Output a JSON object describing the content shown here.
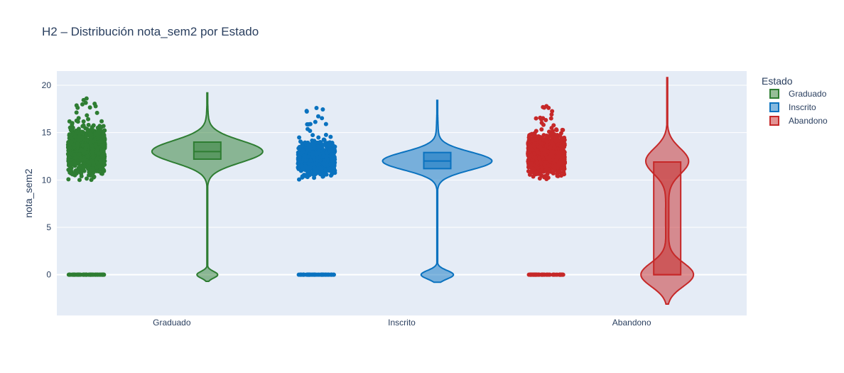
{
  "chart_data": {
    "type": "violin",
    "title": "H2 – Distribución nota_sem2 por Estado",
    "xlabel": "",
    "ylabel": "nota_sem2",
    "ylim": [
      -4.3,
      21.5
    ],
    "yticks": [
      0,
      5,
      10,
      15,
      20
    ],
    "grid": true,
    "plot_background": "#e5ecf6",
    "legend": {
      "title": "Estado",
      "placement": "right"
    },
    "categories": [
      "Graduado",
      "Inscrito",
      "Abandono"
    ],
    "series": [
      {
        "name": "Graduado",
        "color": "#2e7d32",
        "box": {
          "q1": 12.2,
          "median": 13.0,
          "q3": 14.0
        },
        "violin_range": [
          -0.7,
          19.2
        ],
        "points": {
          "main_range": [
            10.0,
            16.2
          ],
          "outlier_max": 18.6,
          "zero_cluster": true
        }
      },
      {
        "name": "Inscrito",
        "color": "#0a72bf",
        "box": {
          "q1": 11.2,
          "median": 12.0,
          "q3": 12.9
        },
        "violin_range": [
          -0.8,
          18.4
        ],
        "points": {
          "main_range": [
            10.0,
            14.6
          ],
          "outlier_max": 17.6,
          "zero_cluster": true
        }
      },
      {
        "name": "Abandono",
        "color": "#c62828",
        "box": {
          "q1": 0,
          "median": 0,
          "q3": 11.9
        },
        "violin_range": [
          -3.1,
          20.8
        ],
        "points": {
          "main_range": [
            10.0,
            15.5
          ],
          "outlier_max": 17.8,
          "zero_cluster": true
        }
      }
    ]
  }
}
